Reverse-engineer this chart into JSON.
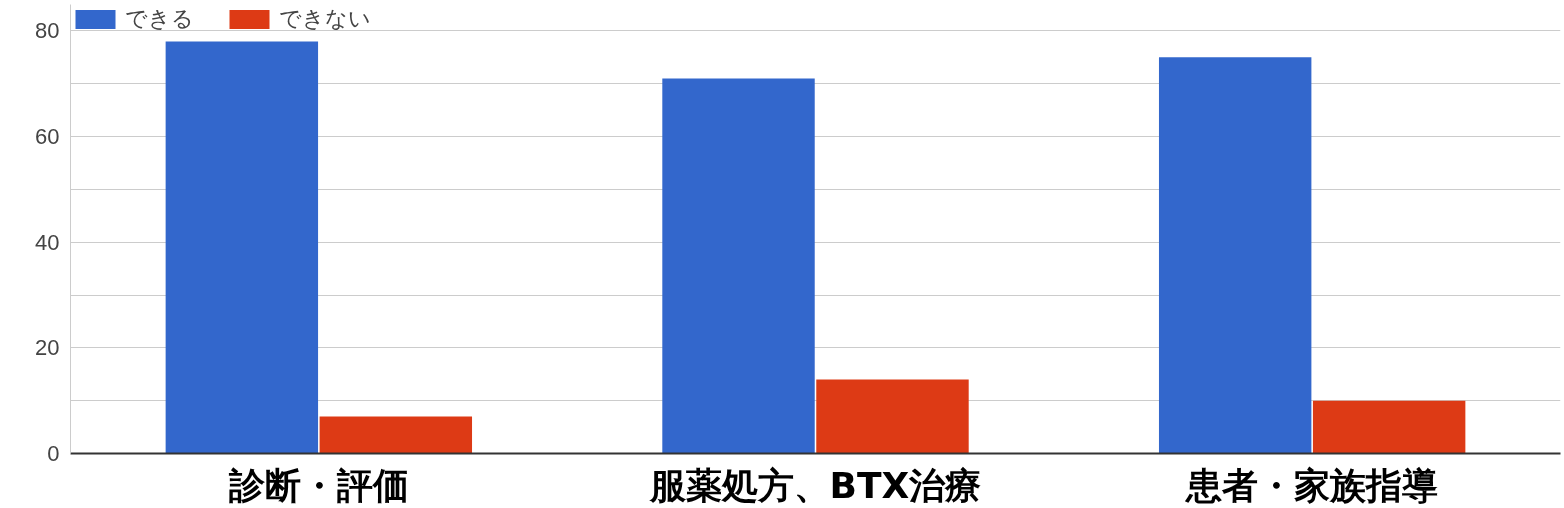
{
  "chart_data": {
    "type": "bar",
    "categories": [
      "診断・評価",
      "服薬処方、BTX治療",
      "患者・家族指導"
    ],
    "series": [
      {
        "name": "できる",
        "color": "#3367cc",
        "values": [
          78,
          71,
          75
        ]
      },
      {
        "name": "できない",
        "color": "#dd3a15",
        "values": [
          7,
          14,
          10
        ]
      }
    ],
    "ylim": [
      0,
      85
    ],
    "yticks": [
      0,
      {
        "value": 10,
        "label": null
      },
      20,
      {
        "value": 30,
        "label": null
      },
      40,
      {
        "value": 50,
        "label": null
      },
      60,
      {
        "value": 70,
        "label": null
      },
      80
    ],
    "grid": "y",
    "legend": "top left"
  }
}
